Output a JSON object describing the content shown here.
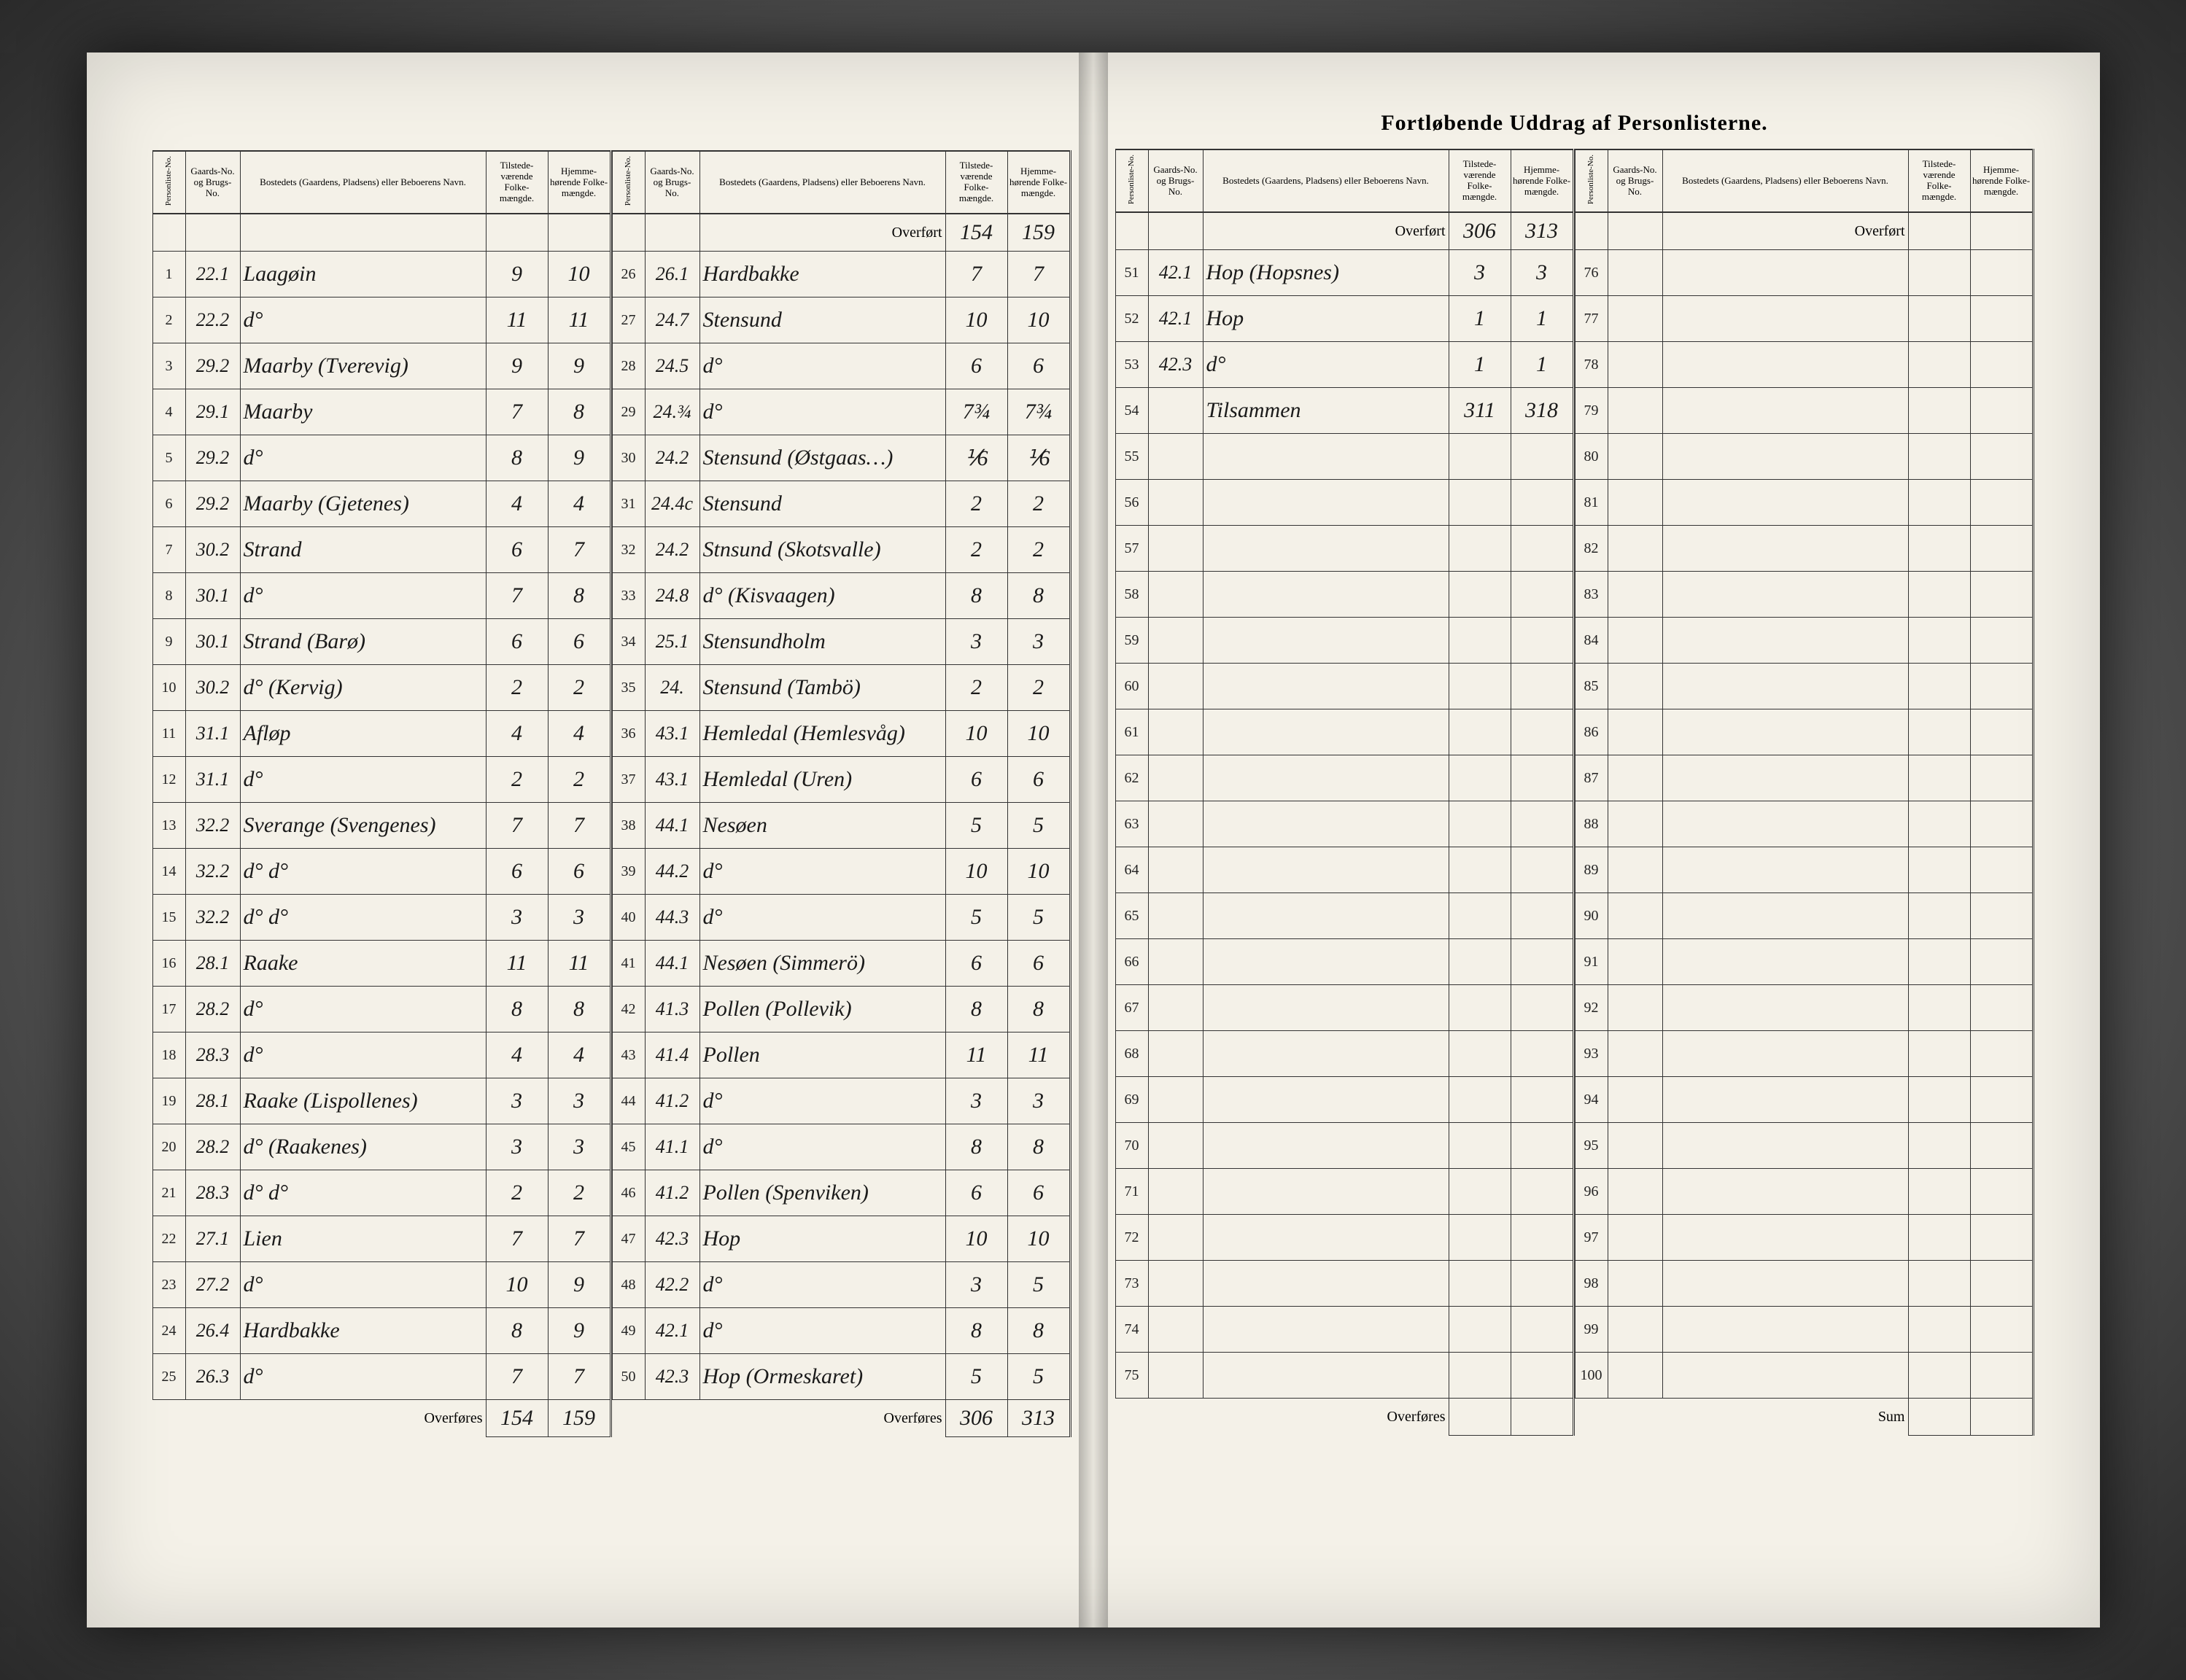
{
  "title": "Fortløbende Uddrag af Personlisterne.",
  "headers": {
    "personliste": "Personliste-No.",
    "gaard": "Gaards-No. og Brugs-No.",
    "bosted": "Bostedets (Gaardens, Pladsens) eller Beboerens Navn.",
    "tilstede": "Tilstede-værende Folke-mængde.",
    "hjemme": "Hjemme-hørende Folke-mængde."
  },
  "overfort": "Overført",
  "overfores": "Overføres",
  "sum": "Sum",
  "tilsammen": "Tilsammen",
  "left": {
    "block1": {
      "rows": [
        {
          "n": "1",
          "g": "22.1",
          "name": "Laagøin",
          "t": "9",
          "h": "10"
        },
        {
          "n": "2",
          "g": "22.2",
          "name": "d°",
          "t": "11",
          "h": "11"
        },
        {
          "n": "3",
          "g": "29.2",
          "name": "Maarby (Tverevig)",
          "t": "9",
          "h": "9"
        },
        {
          "n": "4",
          "g": "29.1",
          "name": "Maarby",
          "t": "7",
          "h": "8"
        },
        {
          "n": "5",
          "g": "29.2",
          "name": "d°",
          "t": "8",
          "h": "9"
        },
        {
          "n": "6",
          "g": "29.2",
          "name": "Maarby (Gjetenes)",
          "t": "4",
          "h": "4"
        },
        {
          "n": "7",
          "g": "30.2",
          "name": "Strand",
          "t": "6",
          "h": "7"
        },
        {
          "n": "8",
          "g": "30.1",
          "name": "d°",
          "t": "7",
          "h": "8"
        },
        {
          "n": "9",
          "g": "30.1",
          "name": "Strand (Barø)",
          "t": "6",
          "h": "6"
        },
        {
          "n": "10",
          "g": "30.2",
          "name": "d° (Kervig)",
          "t": "2",
          "h": "2"
        },
        {
          "n": "11",
          "g": "31.1",
          "name": "Afløp",
          "t": "4",
          "h": "4"
        },
        {
          "n": "12",
          "g": "31.1",
          "name": "d°",
          "t": "2",
          "h": "2"
        },
        {
          "n": "13",
          "g": "32.2",
          "name": "Sverange (Svengenes)",
          "t": "7",
          "h": "7"
        },
        {
          "n": "14",
          "g": "32.2",
          "name": "d°    d°",
          "t": "6",
          "h": "6"
        },
        {
          "n": "15",
          "g": "32.2",
          "name": "d°    d°",
          "t": "3",
          "h": "3"
        },
        {
          "n": "16",
          "g": "28.1",
          "name": "Raake",
          "t": "11",
          "h": "11"
        },
        {
          "n": "17",
          "g": "28.2",
          "name": "d°",
          "t": "8",
          "h": "8"
        },
        {
          "n": "18",
          "g": "28.3",
          "name": "d°",
          "t": "4",
          "h": "4"
        },
        {
          "n": "19",
          "g": "28.1",
          "name": "Raake (Lispollenes)",
          "t": "3",
          "h": "3"
        },
        {
          "n": "20",
          "g": "28.2",
          "name": "d° (Raakenes)",
          "t": "3",
          "h": "3"
        },
        {
          "n": "21",
          "g": "28.3",
          "name": "d°    d°",
          "t": "2",
          "h": "2"
        },
        {
          "n": "22",
          "g": "27.1",
          "name": "Lien",
          "t": "7",
          "h": "7"
        },
        {
          "n": "23",
          "g": "27.2",
          "name": "d°",
          "t": "10",
          "h": "9"
        },
        {
          "n": "24",
          "g": "26.4",
          "name": "Hardbakke",
          "t": "8",
          "h": "9"
        },
        {
          "n": "25",
          "g": "26.3",
          "name": "d°",
          "t": "7",
          "h": "7"
        }
      ],
      "foot_t": "154",
      "foot_h": "159"
    },
    "block2": {
      "over_t": "154",
      "over_h": "159",
      "rows": [
        {
          "n": "26",
          "g": "26.1",
          "name": "Hardbakke",
          "t": "7",
          "h": "7"
        },
        {
          "n": "27",
          "g": "24.7",
          "name": "Stensund",
          "t": "10",
          "h": "10"
        },
        {
          "n": "28",
          "g": "24.5",
          "name": "d°",
          "t": "6",
          "h": "6"
        },
        {
          "n": "29",
          "g": "24.¾",
          "name": "d°",
          "t": "7¾",
          "h": "7¾"
        },
        {
          "n": "30",
          "g": "24.2",
          "name": "Stensund (Østgaas…)",
          "t": "⅟6",
          "h": "⅟6"
        },
        {
          "n": "31",
          "g": "24.4c",
          "name": "Stensund",
          "t": "2",
          "h": "2"
        },
        {
          "n": "32",
          "g": "24.2",
          "name": "Stnsund (Skotsvalle)",
          "t": "2",
          "h": "2"
        },
        {
          "n": "33",
          "g": "24.8",
          "name": "d° (Kisvaagen)",
          "t": "8",
          "h": "8"
        },
        {
          "n": "34",
          "g": "25.1",
          "name": "Stensundholm",
          "t": "3",
          "h": "3"
        },
        {
          "n": "35",
          "g": "24.",
          "name": "Stensund (Tambö)",
          "t": "2",
          "h": "2"
        },
        {
          "n": "36",
          "g": "43.1",
          "name": "Hemledal (Hemlesvåg)",
          "t": "10",
          "h": "10"
        },
        {
          "n": "37",
          "g": "43.1",
          "name": "Hemledal (Uren)",
          "t": "6",
          "h": "6"
        },
        {
          "n": "38",
          "g": "44.1",
          "name": "Nesøen",
          "t": "5",
          "h": "5"
        },
        {
          "n": "39",
          "g": "44.2",
          "name": "d°",
          "t": "10",
          "h": "10"
        },
        {
          "n": "40",
          "g": "44.3",
          "name": "d°",
          "t": "5",
          "h": "5"
        },
        {
          "n": "41",
          "g": "44.1",
          "name": "Nesøen (Simmerö)",
          "t": "6",
          "h": "6"
        },
        {
          "n": "42",
          "g": "41.3",
          "name": "Pollen (Pollevik)",
          "t": "8",
          "h": "8"
        },
        {
          "n": "43",
          "g": "41.4",
          "name": "Pollen",
          "t": "11",
          "h": "11"
        },
        {
          "n": "44",
          "g": "41.2",
          "name": "d°",
          "t": "3",
          "h": "3"
        },
        {
          "n": "45",
          "g": "41.1",
          "name": "d°",
          "t": "8",
          "h": "8"
        },
        {
          "n": "46",
          "g": "41.2",
          "name": "Pollen (Spenviken)",
          "t": "6",
          "h": "6"
        },
        {
          "n": "47",
          "g": "42.3",
          "name": "Hop",
          "t": "10",
          "h": "10"
        },
        {
          "n": "48",
          "g": "42.2",
          "name": "d°",
          "t": "3",
          "h": "5"
        },
        {
          "n": "49",
          "g": "42.1",
          "name": "d°",
          "t": "8",
          "h": "8"
        },
        {
          "n": "50",
          "g": "42.3",
          "name": "Hop (Ormeskaret)",
          "t": "5",
          "h": "5"
        }
      ],
      "foot_t": "306",
      "foot_h": "313"
    }
  },
  "right": {
    "block1": {
      "over_t": "306",
      "over_h": "313",
      "rows": [
        {
          "n": "51",
          "g": "42.1",
          "name": "Hop (Hopsnes)",
          "t": "3",
          "h": "3"
        },
        {
          "n": "52",
          "g": "42.1",
          "name": "Hop",
          "t": "1",
          "h": "1"
        },
        {
          "n": "53",
          "g": "42.3",
          "name": "d°",
          "t": "1",
          "h": "1"
        },
        {
          "n": "54",
          "g": "",
          "name": "Tilsammen",
          "t": "311",
          "h": "318"
        },
        {
          "n": "55",
          "g": "",
          "name": "",
          "t": "",
          "h": ""
        },
        {
          "n": "56",
          "g": "",
          "name": "",
          "t": "",
          "h": ""
        },
        {
          "n": "57",
          "g": "",
          "name": "",
          "t": "",
          "h": ""
        },
        {
          "n": "58",
          "g": "",
          "name": "",
          "t": "",
          "h": ""
        },
        {
          "n": "59",
          "g": "",
          "name": "",
          "t": "",
          "h": ""
        },
        {
          "n": "60",
          "g": "",
          "name": "",
          "t": "",
          "h": ""
        },
        {
          "n": "61",
          "g": "",
          "name": "",
          "t": "",
          "h": ""
        },
        {
          "n": "62",
          "g": "",
          "name": "",
          "t": "",
          "h": ""
        },
        {
          "n": "63",
          "g": "",
          "name": "",
          "t": "",
          "h": ""
        },
        {
          "n": "64",
          "g": "",
          "name": "",
          "t": "",
          "h": ""
        },
        {
          "n": "65",
          "g": "",
          "name": "",
          "t": "",
          "h": ""
        },
        {
          "n": "66",
          "g": "",
          "name": "",
          "t": "",
          "h": ""
        },
        {
          "n": "67",
          "g": "",
          "name": "",
          "t": "",
          "h": ""
        },
        {
          "n": "68",
          "g": "",
          "name": "",
          "t": "",
          "h": ""
        },
        {
          "n": "69",
          "g": "",
          "name": "",
          "t": "",
          "h": ""
        },
        {
          "n": "70",
          "g": "",
          "name": "",
          "t": "",
          "h": ""
        },
        {
          "n": "71",
          "g": "",
          "name": "",
          "t": "",
          "h": ""
        },
        {
          "n": "72",
          "g": "",
          "name": "",
          "t": "",
          "h": ""
        },
        {
          "n": "73",
          "g": "",
          "name": "",
          "t": "",
          "h": ""
        },
        {
          "n": "74",
          "g": "",
          "name": "",
          "t": "",
          "h": ""
        },
        {
          "n": "75",
          "g": "",
          "name": "",
          "t": "",
          "h": ""
        }
      ],
      "foot_t": "",
      "foot_h": ""
    },
    "block2": {
      "over_t": "",
      "over_h": "",
      "rows": [
        {
          "n": "76",
          "g": "",
          "name": "",
          "t": "",
          "h": ""
        },
        {
          "n": "77",
          "g": "",
          "name": "",
          "t": "",
          "h": ""
        },
        {
          "n": "78",
          "g": "",
          "name": "",
          "t": "",
          "h": ""
        },
        {
          "n": "79",
          "g": "",
          "name": "",
          "t": "",
          "h": ""
        },
        {
          "n": "80",
          "g": "",
          "name": "",
          "t": "",
          "h": ""
        },
        {
          "n": "81",
          "g": "",
          "name": "",
          "t": "",
          "h": ""
        },
        {
          "n": "82",
          "g": "",
          "name": "",
          "t": "",
          "h": ""
        },
        {
          "n": "83",
          "g": "",
          "name": "",
          "t": "",
          "h": ""
        },
        {
          "n": "84",
          "g": "",
          "name": "",
          "t": "",
          "h": ""
        },
        {
          "n": "85",
          "g": "",
          "name": "",
          "t": "",
          "h": ""
        },
        {
          "n": "86",
          "g": "",
          "name": "",
          "t": "",
          "h": ""
        },
        {
          "n": "87",
          "g": "",
          "name": "",
          "t": "",
          "h": ""
        },
        {
          "n": "88",
          "g": "",
          "name": "",
          "t": "",
          "h": ""
        },
        {
          "n": "89",
          "g": "",
          "name": "",
          "t": "",
          "h": ""
        },
        {
          "n": "90",
          "g": "",
          "name": "",
          "t": "",
          "h": ""
        },
        {
          "n": "91",
          "g": "",
          "name": "",
          "t": "",
          "h": ""
        },
        {
          "n": "92",
          "g": "",
          "name": "",
          "t": "",
          "h": ""
        },
        {
          "n": "93",
          "g": "",
          "name": "",
          "t": "",
          "h": ""
        },
        {
          "n": "94",
          "g": "",
          "name": "",
          "t": "",
          "h": ""
        },
        {
          "n": "95",
          "g": "",
          "name": "",
          "t": "",
          "h": ""
        },
        {
          "n": "96",
          "g": "",
          "name": "",
          "t": "",
          "h": ""
        },
        {
          "n": "97",
          "g": "",
          "name": "",
          "t": "",
          "h": ""
        },
        {
          "n": "98",
          "g": "",
          "name": "",
          "t": "",
          "h": ""
        },
        {
          "n": "99",
          "g": "",
          "name": "",
          "t": "",
          "h": ""
        },
        {
          "n": "100",
          "g": "",
          "name": "",
          "t": "",
          "h": ""
        }
      ],
      "foot_t": "",
      "foot_h": "",
      "foot_label": "Sum"
    }
  }
}
